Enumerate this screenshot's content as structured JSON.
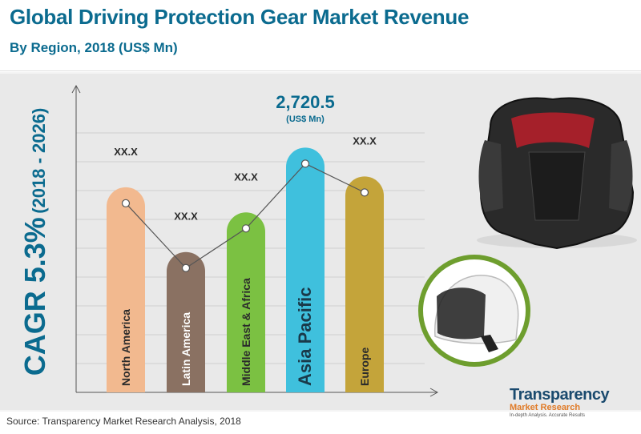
{
  "header": {
    "title": "Global Driving Protection Gear Market Revenue",
    "subtitle": "By Region, 2018 (US$ Mn)"
  },
  "cagr": {
    "value": "CAGR 5.3%",
    "period": "(2018 - 2026)"
  },
  "source": "Source: Transparency Market Research Analysis, 2018",
  "brand": {
    "name": "Transparency",
    "name2": "Market Research",
    "tagline": "In-depth Analysis. Accurate Results"
  },
  "colors": {
    "title": "#0b6b8f",
    "north_america": "#f2b98f",
    "latin_america": "#8a7162",
    "middle_east_africa": "#7bc142",
    "asia_pacific": "#3fc0dd",
    "europe": "#c4a43a"
  },
  "chart_data": {
    "type": "bar",
    "title": "Global Driving Protection Gear Market Revenue",
    "subtitle": "By Region, 2018 (US$ Mn)",
    "categories": [
      "North America",
      "Latin America",
      "Middle East & Africa",
      "Asia Pacific",
      "Europe"
    ],
    "values": [
      2280,
      1560,
      2000,
      2720.5,
      2400
    ],
    "data_labels": [
      "XX.X",
      "XX.X",
      "XX.X",
      "2,720.5",
      "XX.X"
    ],
    "highlight_unit": "(US$ Mn)",
    "highlight_index": 3,
    "bar_colors": [
      "#f2b98f",
      "#8a7162",
      "#7bc142",
      "#3fc0dd",
      "#c4a43a"
    ],
    "overlay": "line connecting bar tops",
    "ylim": [
      0,
      3400
    ],
    "grid": true,
    "xlabel": "",
    "ylabel": ""
  }
}
